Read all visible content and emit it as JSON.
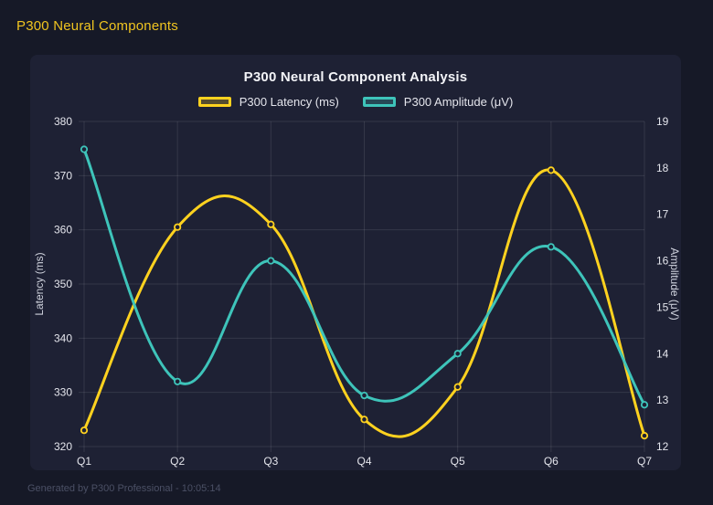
{
  "header": {
    "title": "P300 Neural Components"
  },
  "footer": {
    "text": "Generated by P300 Professional - 10:05:14"
  },
  "colors": {
    "page_bg": "#161927",
    "card_bg": "#1e2134",
    "grid": "rgba(255,255,255,0.10)",
    "title": "#f2f3f7",
    "tick": "#e4e5ec",
    "axis_title": "#cfd2dd",
    "header_accent": "#f0c420",
    "footer_text": "#4b5065"
  },
  "chart_data": {
    "type": "line",
    "title": "P300 Neural Component Analysis",
    "categories": [
      "Q1",
      "Q2",
      "Q3",
      "Q4",
      "Q5",
      "Q6",
      "Q7"
    ],
    "series": [
      {
        "name": "P300 Latency (ms)",
        "axis": "left",
        "color": "#ffd21f",
        "fill": "rgba(255,210,31,0.25)",
        "values": [
          323,
          360.5,
          361,
          325,
          331,
          371,
          322
        ]
      },
      {
        "name": "P300 Amplitude (μV)",
        "axis": "right",
        "color": "#3ec4ba",
        "fill": "rgba(62,196,186,0.25)",
        "values": [
          18.4,
          13.4,
          16.0,
          13.1,
          14.0,
          16.3,
          12.9
        ]
      }
    ],
    "y_left": {
      "label": "Latency (ms)",
      "min": 320,
      "max": 380,
      "step": 10
    },
    "y_right": {
      "label": "Amplitude (μV)",
      "min": 12,
      "max": 19,
      "step": 1
    },
    "grid": true,
    "legend_position": "top",
    "line_tension": 0.4
  }
}
